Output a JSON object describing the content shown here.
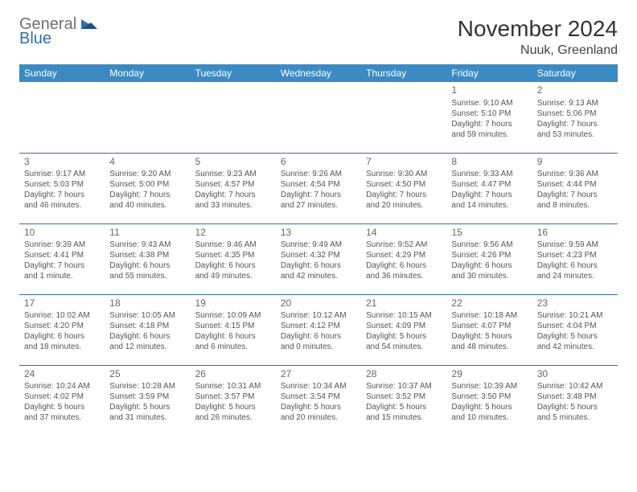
{
  "logo": {
    "text1": "General",
    "text2": "Blue"
  },
  "title": "November 2024",
  "location": "Nuuk, Greenland",
  "colors": {
    "header_bg": "#3b8ac4",
    "header_text": "#ffffff",
    "row_border": "#2f6fb0",
    "body_text": "#555555",
    "daynum": "#666666",
    "logo_gray": "#6f6f6f",
    "logo_blue": "#2f6fb0",
    "background": "#ffffff"
  },
  "typography": {
    "title_fontsize": 28,
    "location_fontsize": 16,
    "header_fontsize": 12,
    "daynum_fontsize": 12,
    "cell_fontsize": 10,
    "font_family": "Arial"
  },
  "daysOfWeek": [
    "Sunday",
    "Monday",
    "Tuesday",
    "Wednesday",
    "Thursday",
    "Friday",
    "Saturday"
  ],
  "weeks": [
    [
      null,
      null,
      null,
      null,
      null,
      {
        "n": "1",
        "sunrise": "Sunrise: 9:10 AM",
        "sunset": "Sunset: 5:10 PM",
        "day1": "Daylight: 7 hours",
        "day2": "and 59 minutes."
      },
      {
        "n": "2",
        "sunrise": "Sunrise: 9:13 AM",
        "sunset": "Sunset: 5:06 PM",
        "day1": "Daylight: 7 hours",
        "day2": "and 53 minutes."
      }
    ],
    [
      {
        "n": "3",
        "sunrise": "Sunrise: 9:17 AM",
        "sunset": "Sunset: 5:03 PM",
        "day1": "Daylight: 7 hours",
        "day2": "and 46 minutes."
      },
      {
        "n": "4",
        "sunrise": "Sunrise: 9:20 AM",
        "sunset": "Sunset: 5:00 PM",
        "day1": "Daylight: 7 hours",
        "day2": "and 40 minutes."
      },
      {
        "n": "5",
        "sunrise": "Sunrise: 9:23 AM",
        "sunset": "Sunset: 4:57 PM",
        "day1": "Daylight: 7 hours",
        "day2": "and 33 minutes."
      },
      {
        "n": "6",
        "sunrise": "Sunrise: 9:26 AM",
        "sunset": "Sunset: 4:54 PM",
        "day1": "Daylight: 7 hours",
        "day2": "and 27 minutes."
      },
      {
        "n": "7",
        "sunrise": "Sunrise: 9:30 AM",
        "sunset": "Sunset: 4:50 PM",
        "day1": "Daylight: 7 hours",
        "day2": "and 20 minutes."
      },
      {
        "n": "8",
        "sunrise": "Sunrise: 9:33 AM",
        "sunset": "Sunset: 4:47 PM",
        "day1": "Daylight: 7 hours",
        "day2": "and 14 minutes."
      },
      {
        "n": "9",
        "sunrise": "Sunrise: 9:36 AM",
        "sunset": "Sunset: 4:44 PM",
        "day1": "Daylight: 7 hours",
        "day2": "and 8 minutes."
      }
    ],
    [
      {
        "n": "10",
        "sunrise": "Sunrise: 9:39 AM",
        "sunset": "Sunset: 4:41 PM",
        "day1": "Daylight: 7 hours",
        "day2": "and 1 minute."
      },
      {
        "n": "11",
        "sunrise": "Sunrise: 9:43 AM",
        "sunset": "Sunset: 4:38 PM",
        "day1": "Daylight: 6 hours",
        "day2": "and 55 minutes."
      },
      {
        "n": "12",
        "sunrise": "Sunrise: 9:46 AM",
        "sunset": "Sunset: 4:35 PM",
        "day1": "Daylight: 6 hours",
        "day2": "and 49 minutes."
      },
      {
        "n": "13",
        "sunrise": "Sunrise: 9:49 AM",
        "sunset": "Sunset: 4:32 PM",
        "day1": "Daylight: 6 hours",
        "day2": "and 42 minutes."
      },
      {
        "n": "14",
        "sunrise": "Sunrise: 9:52 AM",
        "sunset": "Sunset: 4:29 PM",
        "day1": "Daylight: 6 hours",
        "day2": "and 36 minutes."
      },
      {
        "n": "15",
        "sunrise": "Sunrise: 9:56 AM",
        "sunset": "Sunset: 4:26 PM",
        "day1": "Daylight: 6 hours",
        "day2": "and 30 minutes."
      },
      {
        "n": "16",
        "sunrise": "Sunrise: 9:59 AM",
        "sunset": "Sunset: 4:23 PM",
        "day1": "Daylight: 6 hours",
        "day2": "and 24 minutes."
      }
    ],
    [
      {
        "n": "17",
        "sunrise": "Sunrise: 10:02 AM",
        "sunset": "Sunset: 4:20 PM",
        "day1": "Daylight: 6 hours",
        "day2": "and 18 minutes."
      },
      {
        "n": "18",
        "sunrise": "Sunrise: 10:05 AM",
        "sunset": "Sunset: 4:18 PM",
        "day1": "Daylight: 6 hours",
        "day2": "and 12 minutes."
      },
      {
        "n": "19",
        "sunrise": "Sunrise: 10:09 AM",
        "sunset": "Sunset: 4:15 PM",
        "day1": "Daylight: 6 hours",
        "day2": "and 6 minutes."
      },
      {
        "n": "20",
        "sunrise": "Sunrise: 10:12 AM",
        "sunset": "Sunset: 4:12 PM",
        "day1": "Daylight: 6 hours",
        "day2": "and 0 minutes."
      },
      {
        "n": "21",
        "sunrise": "Sunrise: 10:15 AM",
        "sunset": "Sunset: 4:09 PM",
        "day1": "Daylight: 5 hours",
        "day2": "and 54 minutes."
      },
      {
        "n": "22",
        "sunrise": "Sunrise: 10:18 AM",
        "sunset": "Sunset: 4:07 PM",
        "day1": "Daylight: 5 hours",
        "day2": "and 48 minutes."
      },
      {
        "n": "23",
        "sunrise": "Sunrise: 10:21 AM",
        "sunset": "Sunset: 4:04 PM",
        "day1": "Daylight: 5 hours",
        "day2": "and 42 minutes."
      }
    ],
    [
      {
        "n": "24",
        "sunrise": "Sunrise: 10:24 AM",
        "sunset": "Sunset: 4:02 PM",
        "day1": "Daylight: 5 hours",
        "day2": "and 37 minutes."
      },
      {
        "n": "25",
        "sunrise": "Sunrise: 10:28 AM",
        "sunset": "Sunset: 3:59 PM",
        "day1": "Daylight: 5 hours",
        "day2": "and 31 minutes."
      },
      {
        "n": "26",
        "sunrise": "Sunrise: 10:31 AM",
        "sunset": "Sunset: 3:57 PM",
        "day1": "Daylight: 5 hours",
        "day2": "and 26 minutes."
      },
      {
        "n": "27",
        "sunrise": "Sunrise: 10:34 AM",
        "sunset": "Sunset: 3:54 PM",
        "day1": "Daylight: 5 hours",
        "day2": "and 20 minutes."
      },
      {
        "n": "28",
        "sunrise": "Sunrise: 10:37 AM",
        "sunset": "Sunset: 3:52 PM",
        "day1": "Daylight: 5 hours",
        "day2": "and 15 minutes."
      },
      {
        "n": "29",
        "sunrise": "Sunrise: 10:39 AM",
        "sunset": "Sunset: 3:50 PM",
        "day1": "Daylight: 5 hours",
        "day2": "and 10 minutes."
      },
      {
        "n": "30",
        "sunrise": "Sunrise: 10:42 AM",
        "sunset": "Sunset: 3:48 PM",
        "day1": "Daylight: 5 hours",
        "day2": "and 5 minutes."
      }
    ]
  ]
}
